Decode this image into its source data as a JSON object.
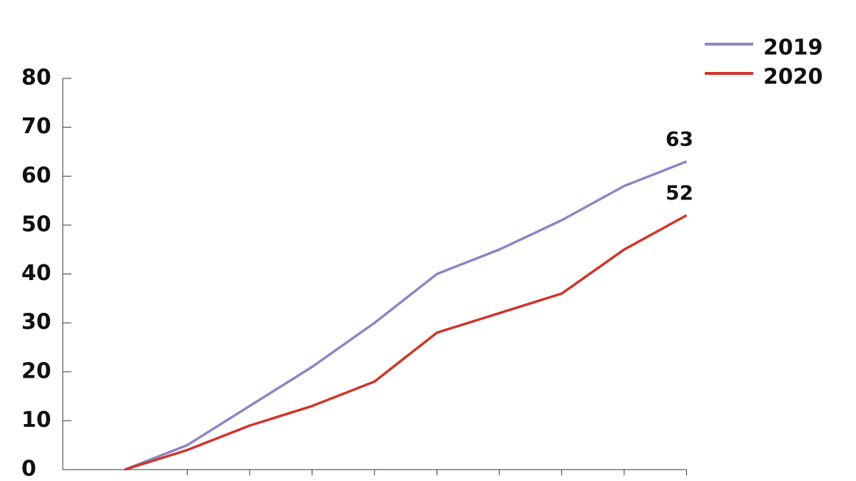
{
  "chart_data": {
    "type": "line",
    "categories": [
      null,
      null,
      null,
      null,
      null,
      null,
      null,
      null,
      null,
      null
    ],
    "series": [
      {
        "name": "2019",
        "color": "#8c86c4",
        "values": [
          0,
          5,
          13,
          21,
          30,
          40,
          45,
          51,
          58,
          63
        ]
      },
      {
        "name": "2020",
        "color": "#d03428",
        "values": [
          0,
          4,
          9,
          13,
          18,
          28,
          32,
          36,
          45,
          52
        ]
      }
    ],
    "ylim": [
      0,
      80
    ],
    "yticks": [
      0,
      10,
      20,
      30,
      40,
      50,
      60,
      70,
      80
    ],
    "legend": "upper right"
  }
}
